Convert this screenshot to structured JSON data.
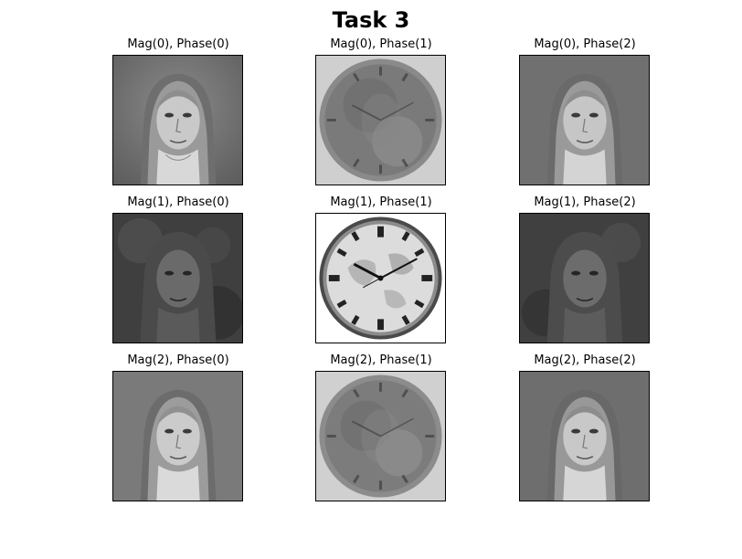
{
  "figure": {
    "title": "Task 3"
  },
  "panels": [
    {
      "title": "Mag(0), Phase(0)",
      "content": "portrait"
    },
    {
      "title": "Mag(0), Phase(1)",
      "content": "clock-hybrid"
    },
    {
      "title": "Mag(0), Phase(2)",
      "content": "portrait"
    },
    {
      "title": "Mag(1), Phase(0)",
      "content": "portrait-hybrid"
    },
    {
      "title": "Mag(1), Phase(1)",
      "content": "clock"
    },
    {
      "title": "Mag(1), Phase(2)",
      "content": "portrait-hybrid"
    },
    {
      "title": "Mag(2), Phase(0)",
      "content": "portrait"
    },
    {
      "title": "Mag(2), Phase(1)",
      "content": "clock-hybrid"
    },
    {
      "title": "Mag(2), Phase(2)",
      "content": "portrait"
    }
  ]
}
